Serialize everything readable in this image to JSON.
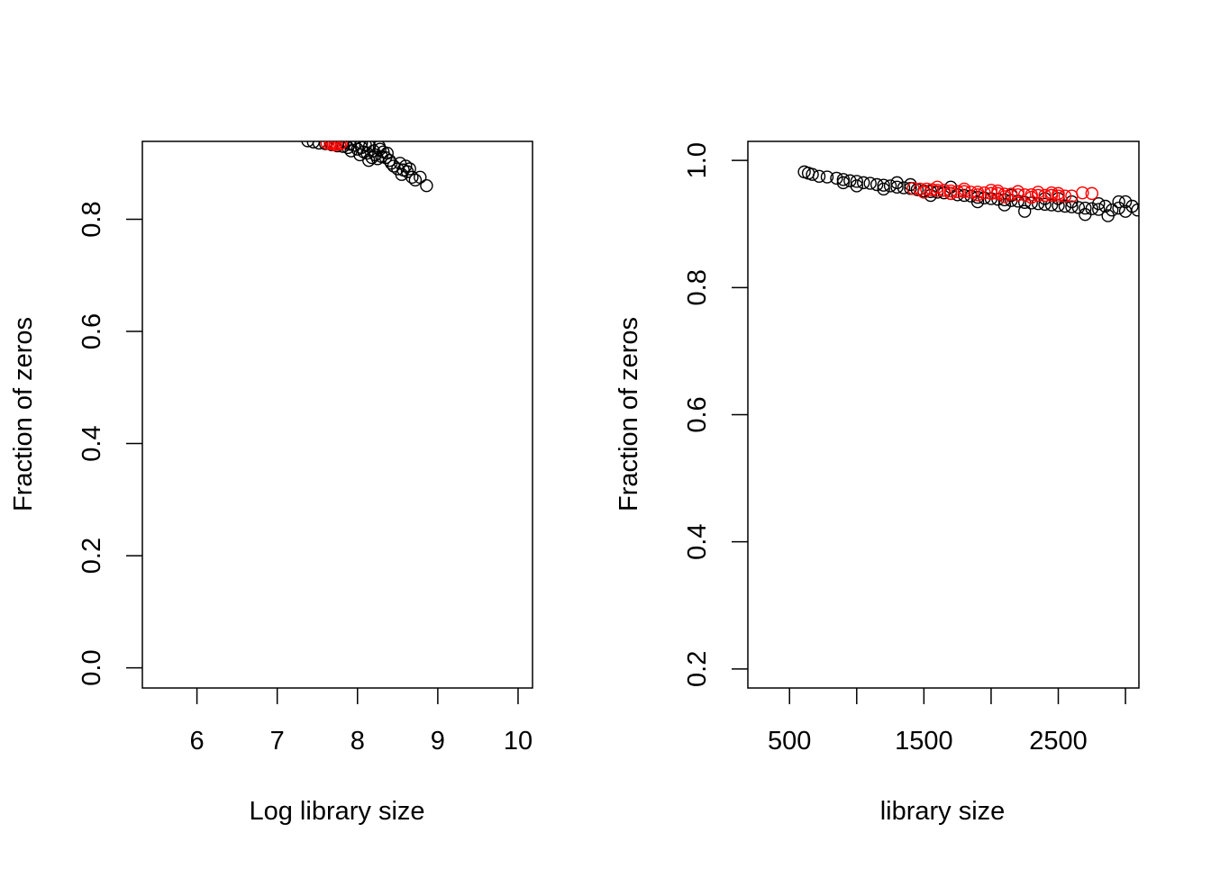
{
  "chart_data": [
    {
      "type": "scatter",
      "title": "",
      "xlabel": "Log library size",
      "ylabel": "Fraction of zeros",
      "xticks": [
        6,
        7,
        8,
        9,
        10
      ],
      "yticks": [
        0.0,
        0.2,
        0.4,
        0.6,
        0.8
      ],
      "xtick_labels": [
        "6",
        "7",
        "8",
        "9",
        "10"
      ],
      "ytick_labels": [
        "0.0",
        "0.2",
        "0.4",
        "0.6",
        "0.8"
      ],
      "xlim": [
        5.32,
        10.18
      ],
      "ylim": [
        -0.036,
        0.939
      ],
      "grid": false,
      "series": [
        {
          "color": "#000000",
          "points": [
            [
              7.38,
              0.94
            ],
            [
              7.45,
              0.938
            ],
            [
              7.52,
              0.936
            ],
            [
              7.6,
              0.935
            ],
            [
              7.68,
              0.933
            ],
            [
              7.75,
              0.931
            ],
            [
              7.82,
              0.93
            ],
            [
              7.88,
              0.928
            ],
            [
              7.92,
              0.922
            ],
            [
              7.96,
              0.932
            ],
            [
              8.0,
              0.925
            ],
            [
              8.03,
              0.915
            ],
            [
              8.05,
              0.928
            ],
            [
              8.08,
              0.92
            ],
            [
              8.12,
              0.918
            ],
            [
              8.14,
              0.905
            ],
            [
              8.15,
              0.93
            ],
            [
              8.18,
              0.91
            ],
            [
              8.2,
              0.922
            ],
            [
              8.22,
              0.915
            ],
            [
              8.25,
              0.908
            ],
            [
              8.28,
              0.925
            ],
            [
              8.3,
              0.912
            ],
            [
              8.32,
              0.92
            ],
            [
              8.35,
              0.91
            ],
            [
              8.37,
              0.918
            ],
            [
              8.4,
              0.905
            ],
            [
              8.42,
              0.9
            ],
            [
              8.45,
              0.895
            ],
            [
              8.5,
              0.89
            ],
            [
              8.53,
              0.9
            ],
            [
              8.55,
              0.88
            ],
            [
              8.57,
              0.888
            ],
            [
              8.6,
              0.895
            ],
            [
              8.62,
              0.885
            ],
            [
              8.65,
              0.89
            ],
            [
              8.68,
              0.875
            ],
            [
              8.72,
              0.87
            ],
            [
              8.78,
              0.875
            ],
            [
              8.86,
              0.86
            ],
            [
              8.27,
              0.93
            ],
            [
              8.1,
              0.932
            ],
            [
              7.9,
              0.934
            ],
            [
              8.05,
              0.936
            ],
            [
              7.85,
              0.937
            ]
          ]
        },
        {
          "color": "#ff0000",
          "points": [
            [
              7.62,
              0.936
            ],
            [
              7.66,
              0.935
            ],
            [
              7.7,
              0.934
            ],
            [
              7.74,
              0.936
            ],
            [
              7.78,
              0.934
            ],
            [
              7.68,
              0.937
            ],
            [
              7.72,
              0.933
            ],
            [
              7.8,
              0.936
            ]
          ]
        }
      ]
    },
    {
      "type": "scatter",
      "title": "",
      "xlabel": "library size",
      "ylabel": "Fraction of zeros",
      "xticks": [
        500,
        1000,
        1500,
        2000,
        2500,
        3000
      ],
      "yticks": [
        0.2,
        0.4,
        0.6,
        0.8,
        1.0
      ],
      "xtick_labels": [
        "500",
        "",
        "1500",
        "",
        "2500",
        ""
      ],
      "ytick_labels": [
        "0.2",
        "0.4",
        "0.6",
        "0.8",
        "1.0"
      ],
      "xlim": [
        190,
        3100
      ],
      "ylim": [
        0.17,
        1.03
      ],
      "grid": false,
      "series": [
        {
          "color": "#000000",
          "points": [
            [
              610,
              0.982
            ],
            [
              640,
              0.98
            ],
            [
              670,
              0.978
            ],
            [
              720,
              0.975
            ],
            [
              780,
              0.974
            ],
            [
              850,
              0.972
            ],
            [
              900,
              0.97
            ],
            [
              950,
              0.968
            ],
            [
              1000,
              0.967
            ],
            [
              1050,
              0.965
            ],
            [
              1100,
              0.964
            ],
            [
              1150,
              0.962
            ],
            [
              1200,
              0.961
            ],
            [
              1250,
              0.96
            ],
            [
              1300,
              0.958
            ],
            [
              1350,
              0.957
            ],
            [
              1400,
              0.956
            ],
            [
              1450,
              0.954
            ],
            [
              1500,
              0.952
            ],
            [
              1550,
              0.951
            ],
            [
              1600,
              0.95
            ],
            [
              1650,
              0.949
            ],
            [
              1700,
              0.948
            ],
            [
              1750,
              0.946
            ],
            [
              1800,
              0.945
            ],
            [
              1850,
              0.944
            ],
            [
              1900,
              0.942
            ],
            [
              1950,
              0.941
            ],
            [
              2000,
              0.94
            ],
            [
              2050,
              0.939
            ],
            [
              2100,
              0.938
            ],
            [
              2150,
              0.937
            ],
            [
              2200,
              0.936
            ],
            [
              2250,
              0.934
            ],
            [
              2300,
              0.933
            ],
            [
              2350,
              0.932
            ],
            [
              2400,
              0.931
            ],
            [
              2450,
              0.93
            ],
            [
              2500,
              0.929
            ],
            [
              2550,
              0.928
            ],
            [
              2600,
              0.927
            ],
            [
              2650,
              0.926
            ],
            [
              2700,
              0.925
            ],
            [
              2750,
              0.924
            ],
            [
              2800,
              0.923
            ],
            [
              2850,
              0.928
            ],
            [
              2900,
              0.922
            ],
            [
              2950,
              0.925
            ],
            [
              3000,
              0.92
            ],
            [
              3050,
              0.928
            ],
            [
              3090,
              0.922
            ],
            [
              2700,
              0.915
            ],
            [
              2870,
              0.913
            ],
            [
              2250,
              0.92
            ],
            [
              1900,
              0.935
            ],
            [
              2400,
              0.94
            ],
            [
              1200,
              0.955
            ],
            [
              1000,
              0.96
            ],
            [
              2100,
              0.93
            ],
            [
              2600,
              0.935
            ],
            [
              1700,
              0.958
            ],
            [
              1400,
              0.962
            ],
            [
              2950,
              0.935
            ],
            [
              2800,
              0.932
            ],
            [
              900,
              0.965
            ],
            [
              1300,
              0.965
            ],
            [
              1550,
              0.945
            ],
            [
              2150,
              0.945
            ],
            [
              2500,
              0.94
            ],
            [
              3000,
              0.935
            ]
          ]
        },
        {
          "color": "#ff0000",
          "points": [
            [
              1420,
              0.956
            ],
            [
              1470,
              0.955
            ],
            [
              1520,
              0.955
            ],
            [
              1560,
              0.954
            ],
            [
              1600,
              0.953
            ],
            [
              1650,
              0.953
            ],
            [
              1700,
              0.952
            ],
            [
              1750,
              0.951
            ],
            [
              1800,
              0.951
            ],
            [
              1850,
              0.95
            ],
            [
              1900,
              0.95
            ],
            [
              1950,
              0.949
            ],
            [
              2000,
              0.948
            ],
            [
              2050,
              0.948
            ],
            [
              2100,
              0.947
            ],
            [
              2150,
              0.947
            ],
            [
              2200,
              0.946
            ],
            [
              2250,
              0.946
            ],
            [
              2300,
              0.946
            ],
            [
              2350,
              0.945
            ],
            [
              2400,
              0.945
            ],
            [
              2450,
              0.945
            ],
            [
              2500,
              0.944
            ],
            [
              2550,
              0.944
            ],
            [
              2600,
              0.944
            ],
            [
              2680,
              0.949
            ],
            [
              2750,
              0.948
            ],
            [
              1600,
              0.958
            ],
            [
              1800,
              0.955
            ],
            [
              2000,
              0.953
            ],
            [
              2200,
              0.951
            ],
            [
              2350,
              0.95
            ],
            [
              1700,
              0.948
            ],
            [
              1900,
              0.946
            ],
            [
              2100,
              0.943
            ],
            [
              2300,
              0.942
            ],
            [
              2500,
              0.948
            ],
            [
              1500,
              0.95
            ],
            [
              2050,
              0.952
            ],
            [
              2450,
              0.949
            ]
          ]
        }
      ]
    }
  ]
}
